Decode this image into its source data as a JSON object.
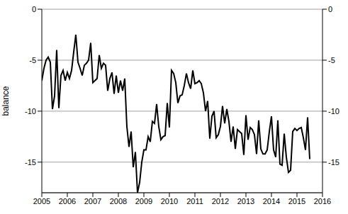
{
  "chart_data": {
    "type": "line",
    "ylabel": "balance",
    "color": "#000000",
    "grid": true,
    "x": [
      2005,
      2005.083,
      2005.167,
      2005.25,
      2005.333,
      2005.417,
      2005.5,
      2005.583,
      2005.667,
      2005.75,
      2005.833,
      2005.917,
      2006,
      2006.083,
      2006.167,
      2006.25,
      2006.333,
      2006.417,
      2006.5,
      2006.583,
      2006.667,
      2006.75,
      2006.833,
      2006.917,
      2007,
      2007.083,
      2007.167,
      2007.25,
      2007.333,
      2007.417,
      2007.5,
      2007.583,
      2007.667,
      2007.75,
      2007.833,
      2007.917,
      2008,
      2008.083,
      2008.167,
      2008.25,
      2008.333,
      2008.417,
      2008.5,
      2008.583,
      2008.667,
      2008.75,
      2008.833,
      2008.917,
      2009,
      2009.083,
      2009.167,
      2009.25,
      2009.333,
      2009.417,
      2009.5,
      2009.583,
      2009.667,
      2009.75,
      2009.833,
      2009.917,
      2010,
      2010.083,
      2010.167,
      2010.25,
      2010.333,
      2010.417,
      2010.5,
      2010.583,
      2010.667,
      2010.75,
      2010.833,
      2010.917,
      2011,
      2011.083,
      2011.167,
      2011.25,
      2011.333,
      2011.417,
      2011.5,
      2011.583,
      2011.667,
      2011.75,
      2011.833,
      2011.917,
      2012,
      2012.083,
      2012.167,
      2012.25,
      2012.333,
      2012.417,
      2012.5,
      2012.583,
      2012.667,
      2012.75,
      2012.833,
      2012.917,
      2013,
      2013.083,
      2013.167,
      2013.25,
      2013.333,
      2013.417,
      2013.5,
      2013.583,
      2013.667,
      2013.75,
      2013.833,
      2013.917,
      2014,
      2014.083,
      2014.167,
      2014.25,
      2014.333,
      2014.417,
      2014.5,
      2014.583,
      2014.667,
      2014.75,
      2014.833,
      2014.917,
      2015,
      2015.083,
      2015.167,
      2015.25,
      2015.333,
      2015.417,
      2015.5
    ],
    "values": [
      -7,
      -5.8,
      -5,
      -4.7,
      -5.2,
      -9.8,
      -8.5,
      -4,
      -9.7,
      -6.5,
      -6,
      -7,
      -6.2,
      -6.8,
      -6,
      -4.2,
      -2.5,
      -5.2,
      -5.8,
      -6.5,
      -5.5,
      -5.3,
      -5,
      -3.3,
      -7.2,
      -7,
      -6.8,
      -4.5,
      -5.8,
      -5.3,
      -5.5,
      -8,
      -6.8,
      -6.2,
      -8.3,
      -6.5,
      -8.2,
      -7,
      -8,
      -6.8,
      -11.5,
      -13.5,
      -12,
      -15.5,
      -14,
      -18,
      -17,
      -15,
      -13.8,
      -13.8,
      -12.5,
      -13,
      -11,
      -11.2,
      -9.3,
      -11.5,
      -12.8,
      -12.5,
      -12.4,
      -9.2,
      -11.6,
      -6,
      -6.3,
      -7.2,
      -9.2,
      -8.5,
      -8.4,
      -7.5,
      -6.3,
      -7.2,
      -7.8,
      -6,
      -7.3,
      -7.2,
      -7,
      -7.3,
      -8.2,
      -10,
      -9,
      -12.7,
      -10.5,
      -10,
      -12.6,
      -12.3,
      -11.5,
      -9.5,
      -11.2,
      -9.8,
      -11,
      -13,
      -11.5,
      -13.7,
      -11.8,
      -12,
      -12.2,
      -14.3,
      -10.4,
      -12.8,
      -11.6,
      -11.8,
      -12.3,
      -14.2,
      -10.9,
      -13.7,
      -14.2,
      -14.2,
      -13.8,
      -12,
      -10.5,
      -13.8,
      -14.5,
      -10.9,
      -15.2,
      -15.3,
      -12.2,
      -14.5,
      -16,
      -15.8,
      -12,
      -11.7,
      -11.9,
      -11.7,
      -11.6,
      -12.6,
      -13.8,
      -10.6,
      -14.7
    ],
    "xlim": [
      2005,
      2016
    ],
    "xticks": [
      2005,
      2006,
      2007,
      2008,
      2009,
      2010,
      2011,
      2012,
      2013,
      2014,
      2015,
      2016
    ],
    "ylim": [
      -18,
      0
    ],
    "yticks": [
      0,
      -5,
      -10,
      -15
    ],
    "y2lim": [
      -18,
      0
    ],
    "y2ticks": [
      0,
      -5,
      -10,
      -15
    ]
  }
}
